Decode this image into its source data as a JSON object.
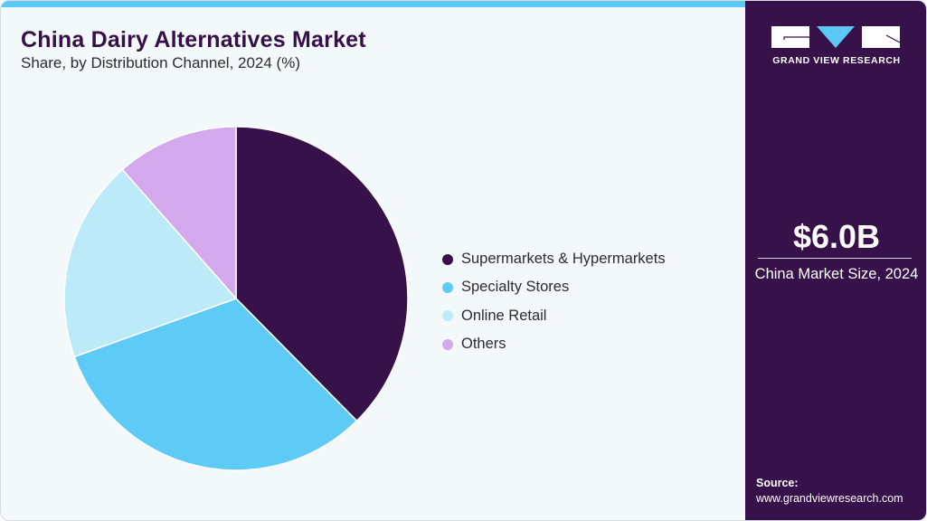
{
  "header": {
    "title": "China Dairy Alternatives Market",
    "subtitle": "Share, by Distribution Channel, 2024 (%)"
  },
  "colors": {
    "accent_bar": "#5cc9f5",
    "sidebar_bg": "#37114a",
    "background": "#f3f8fb"
  },
  "legend": {
    "items": [
      {
        "label": "Supermarkets & Hypermarkets",
        "color": "#37114a"
      },
      {
        "label": "Specialty Stores",
        "color": "#5ecbf6"
      },
      {
        "label": "Online Retail",
        "color": "#bdeaf9"
      },
      {
        "label": "Others",
        "color": "#d4a8ec"
      }
    ]
  },
  "sidebar": {
    "logo_text": "GRAND VIEW RESEARCH",
    "market_value": "$6.0B",
    "market_label": "China Market Size, 2024",
    "source_label": "Source:",
    "source_url": "www.grandviewresearch.com"
  },
  "chart_data": {
    "type": "pie",
    "title": "China Dairy Alternatives Market",
    "subtitle": "Share, by Distribution Channel, 2024 (%)",
    "categories": [
      "Supermarkets & Hypermarkets",
      "Specialty Stores",
      "Online Retail",
      "Others"
    ],
    "values": [
      37.6,
      31.9,
      19.0,
      11.5
    ],
    "colors": [
      "#37114a",
      "#5ecbf6",
      "#bdeaf9",
      "#d4a8ec"
    ],
    "start_angle": "12 o'clock, clockwise",
    "legend_position": "right",
    "data_labels": false
  }
}
